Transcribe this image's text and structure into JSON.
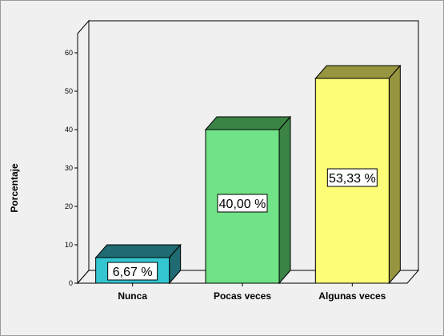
{
  "chart_data": {
    "type": "bar",
    "categories": [
      "Nunca",
      "Pocas veces",
      "Algunas veces"
    ],
    "values": [
      6.67,
      40.0,
      53.33
    ],
    "data_labels": [
      "6,67 %",
      "40,00 %",
      "53,33 %"
    ],
    "ylabel": "Porcentaje",
    "xlabel": "",
    "ylim": [
      0,
      65
    ],
    "yticks": [
      0,
      10,
      20,
      30,
      40,
      50,
      60
    ],
    "grid": false,
    "colors": {
      "front": [
        "#33c6d1",
        "#70e287",
        "#fdfd77"
      ],
      "side": [
        "#1f6b71",
        "#3b8446",
        "#97953f"
      ]
    },
    "style": "3d"
  }
}
